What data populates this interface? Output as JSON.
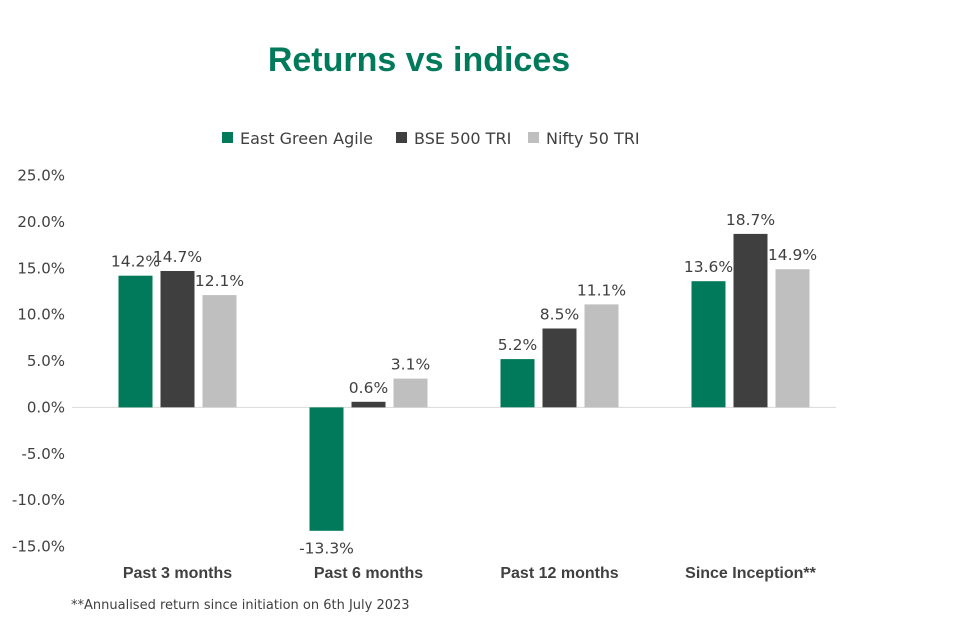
{
  "chart_data": {
    "type": "bar",
    "title": "Returns vs indices",
    "categories": [
      "Past 3 months",
      "Past 6 months",
      "Past 12 months",
      "Since Inception**"
    ],
    "series": [
      {
        "name": "East Green Agile",
        "color": "#007a5a",
        "values": [
          14.2,
          -13.3,
          5.2,
          13.6
        ],
        "labels": [
          "14.2%",
          "-13.3%",
          "5.2%",
          "13.6%"
        ]
      },
      {
        "name": "BSE 500 TRI",
        "color": "#3f3f3f",
        "values": [
          14.7,
          0.6,
          8.5,
          18.7
        ],
        "labels": [
          "14.7%",
          "0.6%",
          "8.5%",
          "18.7%"
        ]
      },
      {
        "name": "Nifty 50 TRI",
        "color": "#bfbfbf",
        "values": [
          12.1,
          3.1,
          11.1,
          14.9
        ],
        "labels": [
          "12.1%",
          "3.1%",
          "11.1%",
          "14.9%"
        ]
      }
    ],
    "ylim": [
      -15,
      25
    ],
    "yticks": [
      25,
      20,
      15,
      10,
      5,
      0,
      -5,
      -10,
      -15
    ],
    "ytick_labels": [
      "25.0%",
      "20.0%",
      "15.0%",
      "10.0%",
      "5.0%",
      "0.0%",
      "-5.0%",
      "-10.0%",
      "-15.0%"
    ],
    "grid": false,
    "legend_position": "top-center",
    "title_color": "#007a5a",
    "footnote": "**Annualised return since initiation on 6th July 2023"
  }
}
